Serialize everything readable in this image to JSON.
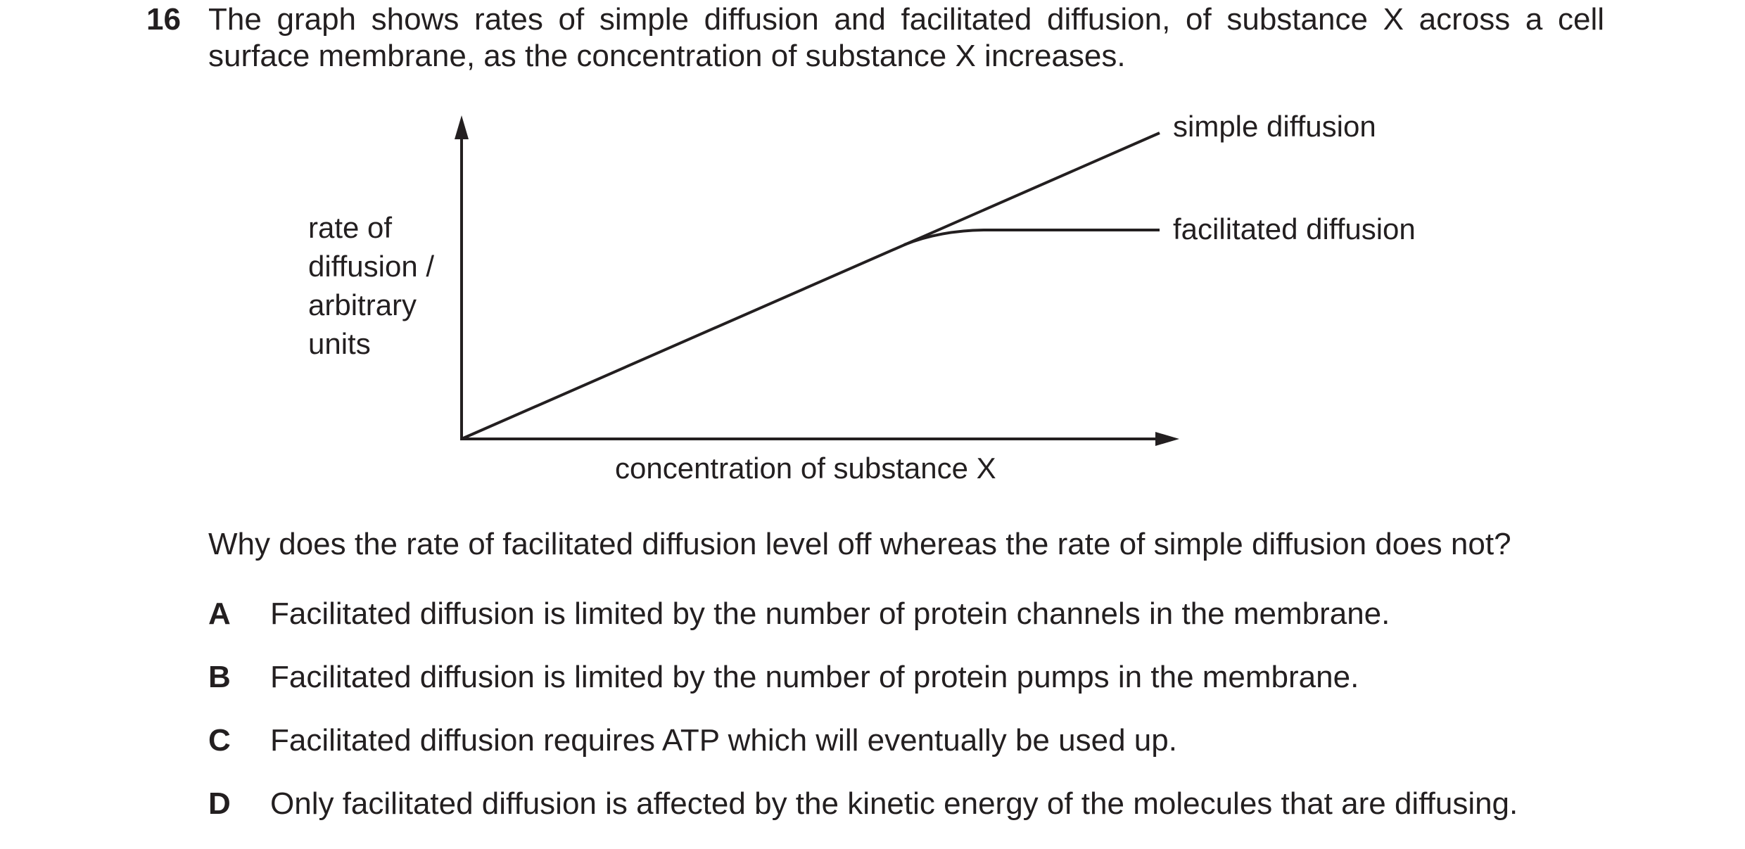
{
  "question": {
    "number": "16",
    "stem": "The graph shows rates of simple diffusion and facilitated diffusion, of substance X across a cell surface membrane, as the concentration of substance X increases.",
    "prompt": "Why does the rate of facilitated diffusion level off whereas the rate of simple diffusion does not?",
    "options": [
      {
        "letter": "A",
        "text": "Facilitated diffusion is limited by the number of protein channels in the membrane."
      },
      {
        "letter": "B",
        "text": "Facilitated diffusion is limited by the number of protein pumps in the membrane."
      },
      {
        "letter": "C",
        "text": "Facilitated diffusion requires ATP which will eventually be used up."
      },
      {
        "letter": "D",
        "text": "Only facilitated diffusion is affected by the kinetic energy of the molecules that are diffusing."
      }
    ]
  },
  "graph": {
    "ylabel_lines": [
      "rate of",
      "diffusion /",
      "arbitrary",
      "units"
    ],
    "xlabel": "concentration of substance X",
    "series": [
      {
        "name": "simple diffusion"
      },
      {
        "name": "facilitated diffusion"
      }
    ],
    "line_color": "#231f20"
  }
}
